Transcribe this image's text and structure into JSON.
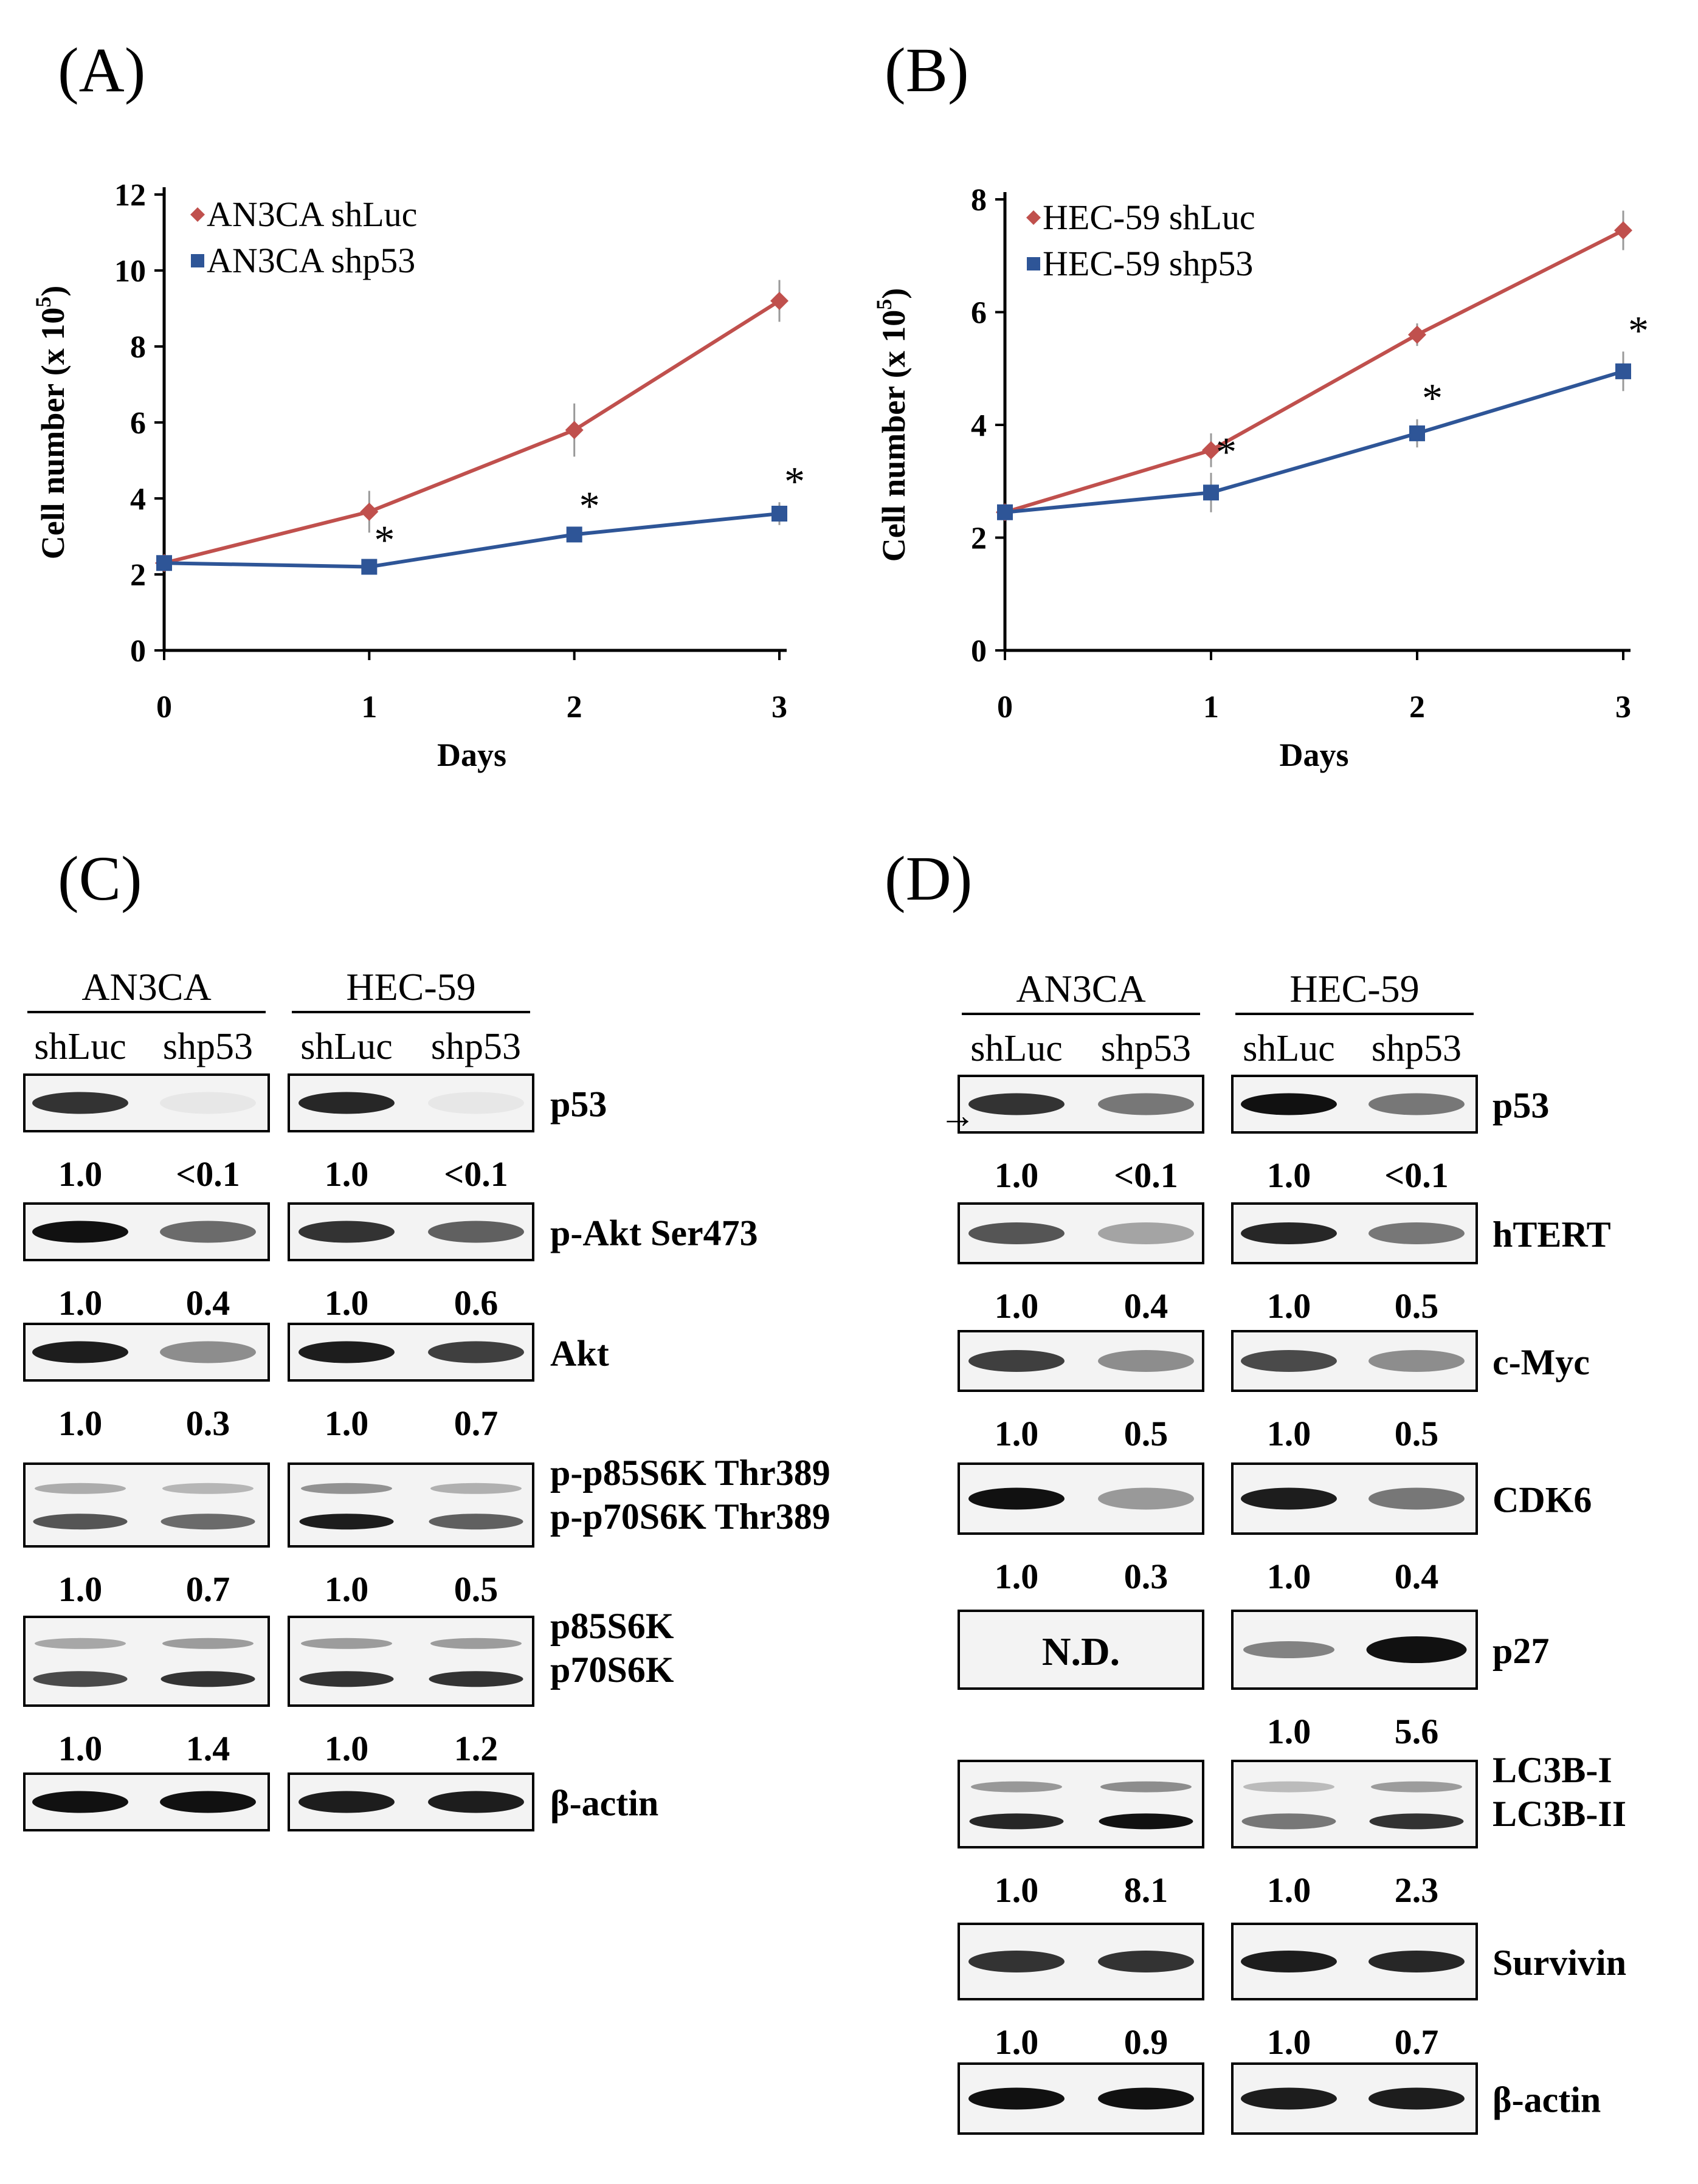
{
  "panel_labels": [
    "(A)",
    "(B)",
    "(C)",
    "(D)"
  ],
  "colors": {
    "red_series": "#c0504d",
    "blue_series": "#2e5597",
    "axis": "#000000",
    "band": "#111111"
  },
  "chart_data": [
    {
      "type": "line",
      "panel": "(A)",
      "xlabel": "Days",
      "ylabel": "Cell number (x 10^5)",
      "ylabel_main": "Cell number (x 10",
      "ylabel_exp": "5",
      "ylabel_end": ")",
      "x": [
        0,
        1,
        2,
        3
      ],
      "xticks": [
        "0",
        "1",
        "2",
        "3"
      ],
      "ylim": [
        0,
        12
      ],
      "yticks": [
        "0",
        "2",
        "4",
        "6",
        "8",
        "10",
        "12"
      ],
      "series": [
        {
          "name": "AN3CA shLuc",
          "color": "#c0504d",
          "marker": "diamond",
          "values": [
            2.3,
            3.65,
            5.8,
            9.2
          ],
          "err": [
            0,
            0.55,
            0.7,
            0.55
          ]
        },
        {
          "name": "AN3CA shp53",
          "color": "#2e5597",
          "marker": "square",
          "values": [
            2.3,
            2.2,
            3.05,
            3.6
          ],
          "err": [
            0,
            0.15,
            0.2,
            0.3
          ]
        }
      ],
      "annotations": [
        "*",
        "*",
        "*"
      ]
    },
    {
      "type": "line",
      "panel": "(B)",
      "xlabel": "Days",
      "ylabel": "Cell number (x 10^5)",
      "ylabel_main": "Cell number (x 10",
      "ylabel_exp": "5",
      "ylabel_end": ")",
      "x": [
        0,
        1,
        2,
        3
      ],
      "xticks": [
        "0",
        "1",
        "2",
        "3"
      ],
      "ylim": [
        0,
        8
      ],
      "yticks": [
        "0",
        "2",
        "4",
        "6",
        "8"
      ],
      "series": [
        {
          "name": "HEC-59 shLuc",
          "color": "#c0504d",
          "marker": "diamond",
          "values": [
            2.45,
            3.55,
            5.6,
            7.45
          ],
          "err": [
            0,
            0.3,
            0.2,
            0.35
          ]
        },
        {
          "name": "HEC-59 shp53",
          "color": "#2e5597",
          "marker": "square",
          "values": [
            2.45,
            2.8,
            3.85,
            4.95
          ],
          "err": [
            0,
            0.35,
            0.25,
            0.35
          ]
        }
      ],
      "annotations": [
        "*",
        "*",
        "*"
      ]
    }
  ],
  "blots": {
    "C": {
      "cells": [
        "AN3CA",
        "HEC-59"
      ],
      "lanes": [
        "shLuc",
        "shp53",
        "shLuc",
        "shp53"
      ],
      "rows": [
        {
          "labels": [
            "p53"
          ],
          "values": [
            "1.0",
            "<0.1",
            "1.0",
            "<0.1"
          ],
          "intensity": [
            0.85,
            0.05,
            0.9,
            0.05
          ]
        },
        {
          "labels": [
            "p-Akt Ser473"
          ],
          "values": [
            "1.0",
            "0.4",
            "1.0",
            "0.6"
          ],
          "intensity": [
            1.0,
            0.6,
            0.85,
            0.65
          ]
        },
        {
          "labels": [
            "Akt"
          ],
          "values": [
            "1.0",
            "0.3",
            "1.0",
            "0.7"
          ],
          "intensity": [
            0.95,
            0.45,
            0.95,
            0.8
          ]
        },
        {
          "labels": [
            "p-p85S6K Thr389",
            "p-p70S6K Thr389"
          ],
          "values": [
            "1.0",
            "0.7",
            "1.0",
            "0.5"
          ],
          "intensity": [
            0.7,
            0.6,
            0.95,
            0.65
          ]
        },
        {
          "labels": [
            "p85S6K",
            "p70S6K"
          ],
          "values": [
            "1.0",
            "1.4",
            "1.0",
            "1.2"
          ],
          "intensity": [
            0.75,
            0.85,
            0.85,
            0.85
          ]
        },
        {
          "labels": [
            "β-actin"
          ],
          "values": [],
          "intensity": [
            1.0,
            1.0,
            0.95,
            0.95
          ]
        }
      ]
    },
    "D": {
      "cells": [
        "AN3CA",
        "HEC-59"
      ],
      "lanes": [
        "shLuc",
        "shp53",
        "shLuc",
        "shp53"
      ],
      "arrow": "→",
      "nd_label": "N.D.",
      "rows": [
        {
          "labels": [
            "p53"
          ],
          "values": [
            "1.0",
            "<0.1",
            "1.0",
            "<0.1"
          ],
          "intensity": [
            0.85,
            0.55,
            1.0,
            0.55
          ]
        },
        {
          "labels": [
            "hTERT"
          ],
          "values": [
            "1.0",
            "0.4",
            "1.0",
            "0.5"
          ],
          "intensity": [
            0.7,
            0.35,
            0.9,
            0.55
          ]
        },
        {
          "labels": [
            "c-Myc"
          ],
          "values": [
            "1.0",
            "0.5",
            "1.0",
            "0.5"
          ],
          "intensity": [
            0.8,
            0.45,
            0.75,
            0.45
          ]
        },
        {
          "labels": [
            "CDK6"
          ],
          "values": [
            "1.0",
            "0.3",
            "1.0",
            "0.4"
          ],
          "intensity": [
            1.0,
            0.4,
            0.95,
            0.55
          ]
        },
        {
          "labels": [
            "p27"
          ],
          "values": [
            "1.0",
            "5.6"
          ],
          "intensity": [
            0.5,
            1.0
          ],
          "nd_left": true
        },
        {
          "labels": [
            "LC3B-I",
            "LC3B-II"
          ],
          "values": [
            "1.0",
            "8.1",
            "1.0",
            "2.3"
          ],
          "intensity": [
            0.9,
            1.0,
            0.55,
            0.85
          ]
        },
        {
          "labels": [
            "Survivin"
          ],
          "values": [
            "1.0",
            "0.9",
            "1.0",
            "0.7"
          ],
          "intensity": [
            0.85,
            0.85,
            0.95,
            0.9
          ]
        },
        {
          "labels": [
            "β-actin"
          ],
          "values": [],
          "intensity": [
            1.0,
            1.0,
            0.95,
            0.95
          ]
        }
      ]
    }
  }
}
